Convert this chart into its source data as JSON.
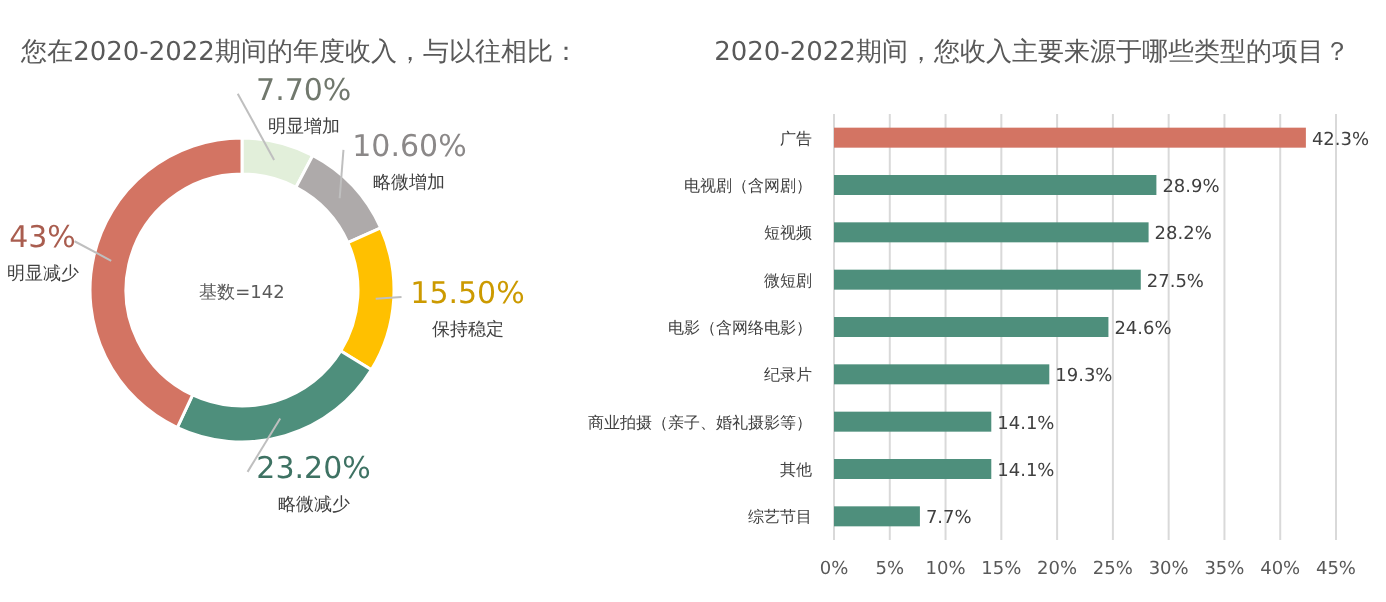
{
  "chart_data": [
    {
      "type": "donut",
      "title": "您在2020-2022期间的年度收入，与以往相比：",
      "categories": [
        "明显增加",
        "略微增加",
        "保持稳定",
        "略微减少",
        "明显减少"
      ],
      "values": [
        7.7,
        10.6,
        15.5,
        23.2,
        43
      ],
      "colors": [
        "#e2efda",
        "#aeaaaa",
        "#ffc000",
        "#4e8f7c",
        "#d37463"
      ],
      "value_labels": [
        "7.70%",
        "10.60%",
        "15.50%",
        "23.20%",
        "43%"
      ],
      "annotations": [
        "基数=142"
      ]
    },
    {
      "type": "bar",
      "orientation": "horizontal",
      "title": "2020-2022期间，您收入主要来源于哪些类型的项目？",
      "categories": [
        "广告",
        "电视剧（含网剧）",
        "短视频",
        "微短剧",
        "电影（含网络电影）",
        "纪录片",
        "商业拍摄（亲子、婚礼摄影等）",
        "其他",
        "综艺节目"
      ],
      "values": [
        42.3,
        28.9,
        28.2,
        27.5,
        24.6,
        19.3,
        14.1,
        14.1,
        7.7
      ],
      "colors": [
        "#d37463",
        "#4e8f7c",
        "#4e8f7c",
        "#4e8f7c",
        "#4e8f7c",
        "#4e8f7c",
        "#4e8f7c",
        "#4e8f7c",
        "#4e8f7c"
      ],
      "xlim": [
        0,
        45
      ],
      "xticks": [
        {
          "value": 0,
          "label": "0%"
        },
        {
          "value": 5,
          "label": "5%"
        },
        {
          "value": 10,
          "label": "10%"
        },
        {
          "value": 15,
          "label": "15%"
        },
        {
          "value": 20,
          "label": "20%"
        },
        {
          "value": 25,
          "label": "25%"
        },
        {
          "value": 30,
          "label": "30%"
        },
        {
          "value": 35,
          "label": "35%"
        },
        {
          "value": 40,
          "label": "40%"
        },
        {
          "value": 45,
          "label": "45%"
        }
      ],
      "grid": "x",
      "value_labels": [
        "42.3%",
        "28.9%",
        "28.2%",
        "27.5%",
        "24.6%",
        "19.3%",
        "14.1%",
        "14.1%",
        "7.7%"
      ]
    }
  ]
}
